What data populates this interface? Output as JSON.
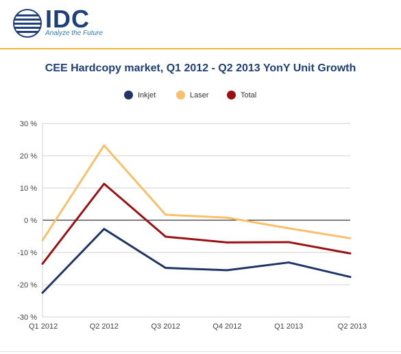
{
  "header": {
    "brand": "IDC",
    "tagline": "Analyze the Future",
    "icons": {
      "logo": "globe-logo-icon"
    }
  },
  "colors": {
    "brand": "#1f3f78",
    "accent": "#f2b632",
    "inkjet": "#1f3566",
    "laser": "#f9bf6a",
    "total": "#9b1111"
  },
  "chart_data": {
    "type": "line",
    "title": "CEE Hardcopy market, Q1 2012 - Q2 2013 YonY Unit Growth",
    "xlabel": "",
    "ylabel": "",
    "categories": [
      "Q1 2012",
      "Q2 2012",
      "Q3 2012",
      "Q4 2012",
      "Q1 2013",
      "Q2 2013"
    ],
    "ylim": [
      -30,
      30
    ],
    "yticks": [
      30,
      20,
      10,
      0,
      -10,
      -20,
      -30
    ],
    "ytick_labels": [
      "30 %",
      "20 %",
      "10 %",
      "0 %",
      "-10 %",
      "-20 %",
      "-30 %"
    ],
    "grid": true,
    "legend_position": "top",
    "series": [
      {
        "name": "Inkjet",
        "color": "#1f3566",
        "values": [
          -22.5,
          -2.7,
          -14.8,
          -15.5,
          -13.1,
          -17.6
        ]
      },
      {
        "name": "Laser",
        "color": "#f9bf6a",
        "values": [
          -6.2,
          23.2,
          1.7,
          0.8,
          -2.5,
          -5.6
        ]
      },
      {
        "name": "Total",
        "color": "#9b1111",
        "values": [
          -13.5,
          11.3,
          -5.1,
          -6.9,
          -6.8,
          -10.3
        ]
      }
    ]
  }
}
